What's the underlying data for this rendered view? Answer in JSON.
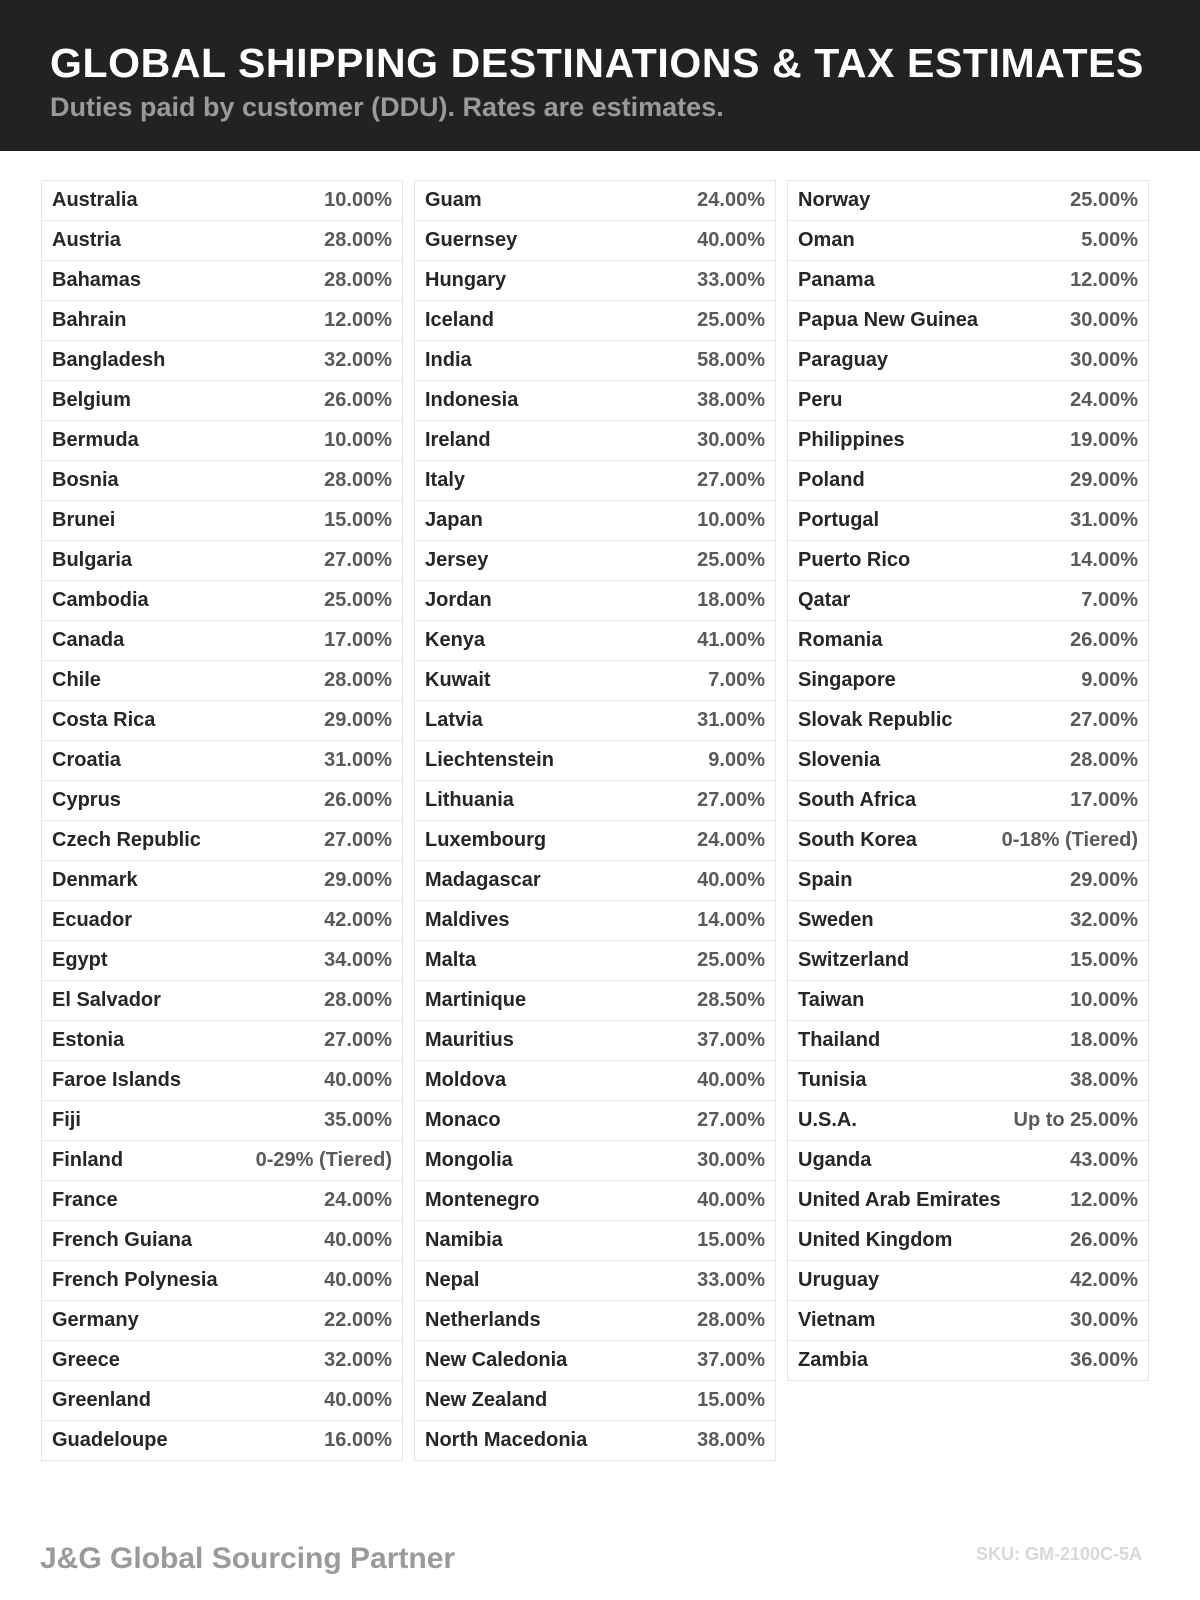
{
  "header": {
    "title": "GLOBAL SHIPPING DESTINATIONS & TAX ESTIMATES",
    "subtitle": "Duties paid by customer (DDU). Rates are estimates."
  },
  "columns": [
    [
      {
        "country": "Australia",
        "rate": "10.00%"
      },
      {
        "country": "Austria",
        "rate": "28.00%"
      },
      {
        "country": "Bahamas",
        "rate": "28.00%"
      },
      {
        "country": "Bahrain",
        "rate": "12.00%"
      },
      {
        "country": "Bangladesh",
        "rate": "32.00%"
      },
      {
        "country": "Belgium",
        "rate": "26.00%"
      },
      {
        "country": "Bermuda",
        "rate": "10.00%"
      },
      {
        "country": "Bosnia",
        "rate": "28.00%"
      },
      {
        "country": "Brunei",
        "rate": "15.00%"
      },
      {
        "country": "Bulgaria",
        "rate": "27.00%"
      },
      {
        "country": "Cambodia",
        "rate": "25.00%"
      },
      {
        "country": "Canada",
        "rate": "17.00%"
      },
      {
        "country": "Chile",
        "rate": "28.00%"
      },
      {
        "country": "Costa Rica",
        "rate": "29.00%"
      },
      {
        "country": "Croatia",
        "rate": "31.00%"
      },
      {
        "country": "Cyprus",
        "rate": "26.00%"
      },
      {
        "country": "Czech Republic",
        "rate": "27.00%"
      },
      {
        "country": "Denmark",
        "rate": "29.00%"
      },
      {
        "country": "Ecuador",
        "rate": "42.00%"
      },
      {
        "country": "Egypt",
        "rate": "34.00%"
      },
      {
        "country": "El Salvador",
        "rate": "28.00%"
      },
      {
        "country": "Estonia",
        "rate": "27.00%"
      },
      {
        "country": "Faroe Islands",
        "rate": "40.00%"
      },
      {
        "country": "Fiji",
        "rate": "35.00%"
      },
      {
        "country": "Finland",
        "rate": "0-29% (Tiered)"
      },
      {
        "country": "France",
        "rate": "24.00%"
      },
      {
        "country": "French Guiana",
        "rate": "40.00%"
      },
      {
        "country": "French Polynesia",
        "rate": "40.00%"
      },
      {
        "country": "Germany",
        "rate": "22.00%"
      },
      {
        "country": "Greece",
        "rate": "32.00%"
      },
      {
        "country": "Greenland",
        "rate": "40.00%"
      },
      {
        "country": "Guadeloupe",
        "rate": "16.00%"
      }
    ],
    [
      {
        "country": "Guam",
        "rate": "24.00%"
      },
      {
        "country": "Guernsey",
        "rate": "40.00%"
      },
      {
        "country": "Hungary",
        "rate": "33.00%"
      },
      {
        "country": "Iceland",
        "rate": "25.00%"
      },
      {
        "country": "India",
        "rate": "58.00%"
      },
      {
        "country": "Indonesia",
        "rate": "38.00%"
      },
      {
        "country": "Ireland",
        "rate": "30.00%"
      },
      {
        "country": "Italy",
        "rate": "27.00%"
      },
      {
        "country": "Japan",
        "rate": "10.00%"
      },
      {
        "country": "Jersey",
        "rate": "25.00%"
      },
      {
        "country": "Jordan",
        "rate": "18.00%"
      },
      {
        "country": "Kenya",
        "rate": "41.00%"
      },
      {
        "country": "Kuwait",
        "rate": "7.00%"
      },
      {
        "country": "Latvia",
        "rate": "31.00%"
      },
      {
        "country": "Liechtenstein",
        "rate": "9.00%"
      },
      {
        "country": "Lithuania",
        "rate": "27.00%"
      },
      {
        "country": "Luxembourg",
        "rate": "24.00%"
      },
      {
        "country": "Madagascar",
        "rate": "40.00%"
      },
      {
        "country": "Maldives",
        "rate": "14.00%"
      },
      {
        "country": "Malta",
        "rate": "25.00%"
      },
      {
        "country": "Martinique",
        "rate": "28.50%"
      },
      {
        "country": "Mauritius",
        "rate": "37.00%"
      },
      {
        "country": "Moldova",
        "rate": "40.00%"
      },
      {
        "country": "Monaco",
        "rate": "27.00%"
      },
      {
        "country": "Mongolia",
        "rate": "30.00%"
      },
      {
        "country": "Montenegro",
        "rate": "40.00%"
      },
      {
        "country": "Namibia",
        "rate": "15.00%"
      },
      {
        "country": "Nepal",
        "rate": "33.00%"
      },
      {
        "country": "Netherlands",
        "rate": "28.00%"
      },
      {
        "country": "New Caledonia",
        "rate": "37.00%"
      },
      {
        "country": "New Zealand",
        "rate": "15.00%"
      },
      {
        "country": "North Macedonia",
        "rate": "38.00%"
      }
    ],
    [
      {
        "country": "Norway",
        "rate": "25.00%"
      },
      {
        "country": "Oman",
        "rate": "5.00%"
      },
      {
        "country": "Panama",
        "rate": "12.00%"
      },
      {
        "country": "Papua New Guinea",
        "rate": "30.00%"
      },
      {
        "country": "Paraguay",
        "rate": "30.00%"
      },
      {
        "country": "Peru",
        "rate": "24.00%"
      },
      {
        "country": "Philippines",
        "rate": "19.00%"
      },
      {
        "country": "Poland",
        "rate": "29.00%"
      },
      {
        "country": "Portugal",
        "rate": "31.00%"
      },
      {
        "country": "Puerto Rico",
        "rate": "14.00%"
      },
      {
        "country": "Qatar",
        "rate": "7.00%"
      },
      {
        "country": "Romania",
        "rate": "26.00%"
      },
      {
        "country": "Singapore",
        "rate": "9.00%"
      },
      {
        "country": "Slovak Republic",
        "rate": "27.00%"
      },
      {
        "country": "Slovenia",
        "rate": "28.00%"
      },
      {
        "country": "South Africa",
        "rate": "17.00%"
      },
      {
        "country": "South Korea",
        "rate": "0-18% (Tiered)"
      },
      {
        "country": "Spain",
        "rate": "29.00%"
      },
      {
        "country": "Sweden",
        "rate": "32.00%"
      },
      {
        "country": "Switzerland",
        "rate": "15.00%"
      },
      {
        "country": "Taiwan",
        "rate": "10.00%"
      },
      {
        "country": "Thailand",
        "rate": "18.00%"
      },
      {
        "country": "Tunisia",
        "rate": "38.00%"
      },
      {
        "country": "U.S.A.",
        "rate": "Up to 25.00%"
      },
      {
        "country": "Uganda",
        "rate": "43.00%"
      },
      {
        "country": "United Arab Emirates",
        "rate": "12.00%"
      },
      {
        "country": "United Kingdom",
        "rate": "26.00%"
      },
      {
        "country": "Uruguay",
        "rate": "42.00%"
      },
      {
        "country": "Vietnam",
        "rate": "30.00%"
      },
      {
        "country": "Zambia",
        "rate": "36.00%"
      }
    ]
  ],
  "footer": {
    "brand": "J&G Global Sourcing Partner",
    "sku": "SKU: GM-2100C-5A"
  },
  "colors": {
    "header_bg": "#222222",
    "title": "#ffffff",
    "subtitle": "#9a9a9a",
    "country_text": "#262626",
    "rate_text": "#5a5a5a",
    "border": "#e6e6e6"
  }
}
